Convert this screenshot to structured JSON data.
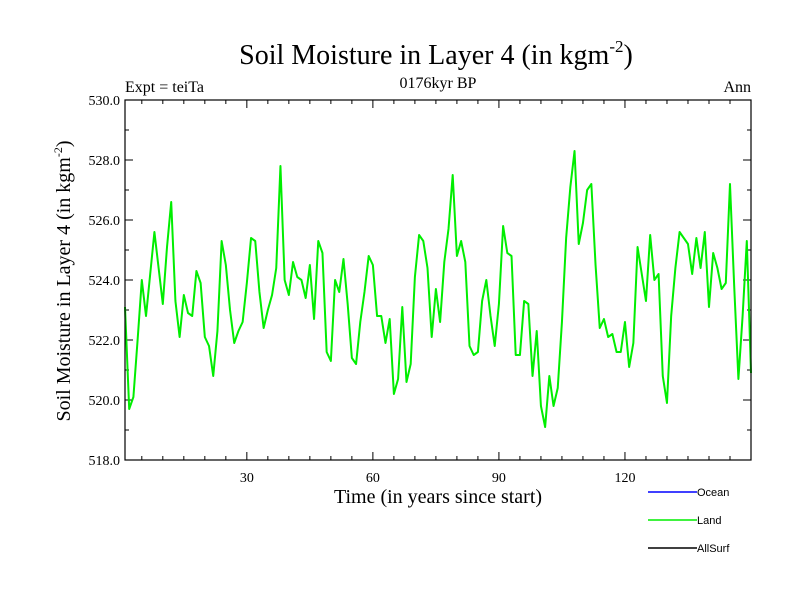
{
  "chart_data": {
    "type": "line",
    "title": "Soil Moisture in Layer 4 (in kgm",
    "title_sup": "-2",
    "title_close": ")",
    "subtitle": "0176kyr BP",
    "left_label": "Expt = teiTa",
    "right_label": "Ann",
    "xlabel": "Time (in years since start)",
    "ylabel": "Soil Moisture in Layer 4 (in kgm",
    "ylabel_sup": "-2",
    "ylabel_close": ")",
    "xlim": [
      1,
      150
    ],
    "ylim": [
      518.0,
      530.0
    ],
    "xticks": [
      30,
      60,
      90,
      120
    ],
    "yticks": [
      "518.0",
      "520.0",
      "522.0",
      "524.0",
      "526.0",
      "528.0",
      "530.0"
    ],
    "legend": [
      {
        "name": "Ocean",
        "color": "#0000ff"
      },
      {
        "name": "Land",
        "color": "#00ee00"
      },
      {
        "name": "AllSurf",
        "color": "#000000"
      }
    ],
    "series": [
      {
        "name": "Land",
        "color": "#00ee00",
        "x_start": 1,
        "values": [
          523.1,
          519.7,
          520.1,
          522.0,
          524.0,
          522.8,
          524.2,
          525.6,
          524.4,
          523.2,
          525.1,
          526.6,
          523.3,
          522.1,
          523.5,
          522.9,
          522.8,
          524.3,
          523.9,
          522.1,
          521.8,
          520.8,
          522.3,
          525.3,
          524.5,
          523.0,
          521.9,
          522.3,
          522.6,
          523.9,
          525.4,
          525.3,
          523.6,
          522.4,
          523.0,
          523.5,
          524.4,
          527.8,
          524.0,
          523.5,
          524.6,
          524.1,
          524.0,
          523.4,
          524.5,
          522.7,
          525.3,
          524.9,
          521.6,
          521.3,
          524.0,
          523.6,
          524.7,
          523.2,
          521.4,
          521.2,
          522.6,
          523.6,
          524.8,
          524.5,
          522.8,
          522.8,
          521.9,
          522.7,
          520.2,
          520.7,
          523.1,
          520.6,
          521.2,
          524.1,
          525.5,
          525.3,
          524.4,
          522.1,
          523.7,
          522.6,
          524.6,
          525.7,
          527.5,
          524.8,
          525.3,
          524.6,
          521.8,
          521.5,
          521.6,
          523.3,
          524.0,
          522.8,
          521.8,
          523.2,
          525.8,
          524.9,
          524.8,
          521.5,
          521.5,
          523.3,
          523.2,
          520.8,
          522.3,
          519.8,
          519.1,
          520.8,
          519.8,
          520.4,
          522.6,
          525.4,
          527.1,
          528.3,
          525.2,
          525.9,
          527.0,
          527.2,
          524.5,
          522.4,
          522.7,
          522.1,
          522.2,
          521.6,
          521.6,
          522.6,
          521.1,
          521.9,
          525.1,
          524.2,
          523.3,
          525.5,
          524.0,
          524.2,
          520.8,
          519.9,
          522.8,
          524.4,
          525.6,
          525.4,
          525.2,
          524.2,
          525.4,
          524.4,
          525.6,
          523.1,
          524.9,
          524.4,
          523.7,
          523.9,
          527.2,
          523.8,
          520.7,
          522.8,
          525.3,
          520.9
        ]
      }
    ]
  }
}
